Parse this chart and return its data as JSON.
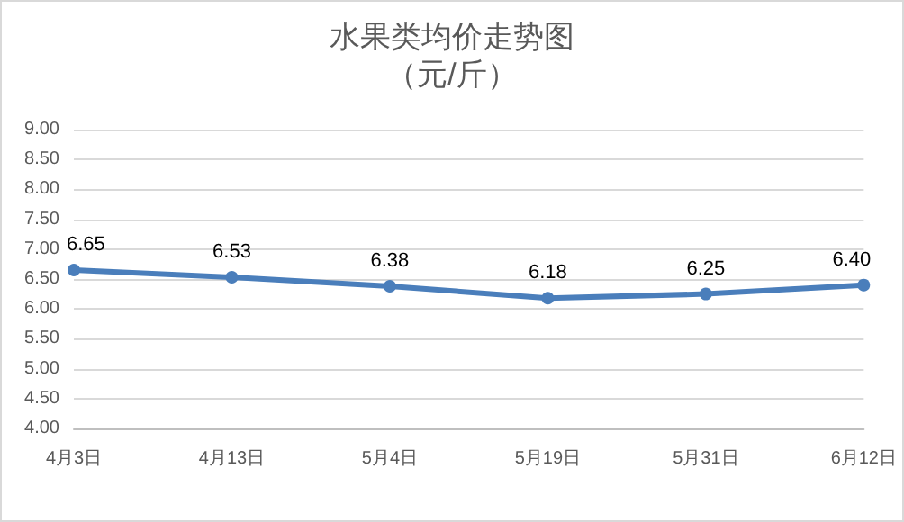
{
  "chart_data": {
    "type": "line",
    "title": "水果类均价走势图",
    "subtitle": "（元/斤）",
    "categories": [
      "4月3日",
      "4月13日",
      "5月4日",
      "5月19日",
      "5月31日",
      "6月12日"
    ],
    "series": [
      {
        "color": "#4a7ebb",
        "values": [
          6.65,
          6.53,
          6.38,
          6.18,
          6.25,
          6.4
        ],
        "value_labels": [
          "6.65",
          "6.53",
          "6.38",
          "6.18",
          "6.25",
          "6.40"
        ]
      }
    ],
    "ylim": [
      4,
      9
    ],
    "yticks": [
      {
        "value": 4,
        "label": "4.00"
      },
      {
        "value": 4.5,
        "label": "4.50"
      },
      {
        "value": 5,
        "label": "5.00"
      },
      {
        "value": 5.5,
        "label": "5.50"
      },
      {
        "value": 6,
        "label": "6.00"
      },
      {
        "value": 6.5,
        "label": "6.50"
      },
      {
        "value": 7,
        "label": "7.00"
      },
      {
        "value": 7.5,
        "label": "7.50"
      },
      {
        "value": 8,
        "label": "8.00"
      },
      {
        "value": 8.5,
        "label": "8.50"
      },
      {
        "value": 9,
        "label": "9.00"
      }
    ],
    "grid": "y",
    "marker": "circle",
    "line_style": "solid"
  }
}
